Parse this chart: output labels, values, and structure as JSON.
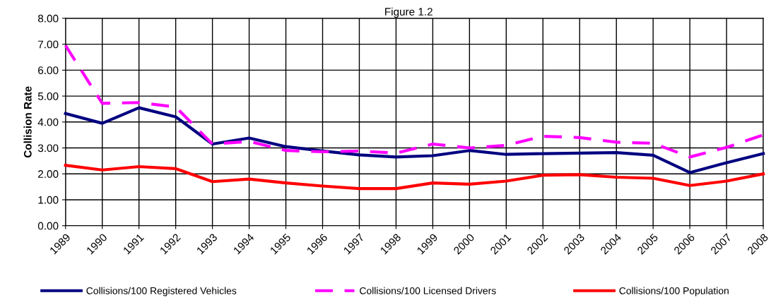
{
  "chart_data": {
    "type": "line",
    "title": "Figure 1.2",
    "ylabel": "Collision Rate",
    "categories": [
      "1989",
      "1990",
      "1991",
      "1992",
      "1993",
      "1994",
      "1995",
      "1996",
      "1997",
      "1998",
      "1999",
      "2000",
      "2001",
      "2002",
      "2003",
      "2004",
      "2005",
      "2006",
      "2007",
      "2008"
    ],
    "series": [
      {
        "name": "Collisions/100 Registered Vehicles",
        "color": "#000080",
        "line_style": "solid",
        "values": [
          4.33,
          3.95,
          4.55,
          4.2,
          3.15,
          3.38,
          3.05,
          2.88,
          2.73,
          2.65,
          2.7,
          2.9,
          2.75,
          2.78,
          2.8,
          2.82,
          2.72,
          2.05,
          2.43,
          2.78
        ]
      },
      {
        "name": "Collisions/100 Licensed Drivers",
        "color": "#ff00ff",
        "line_style": "dashed",
        "values": [
          6.95,
          4.72,
          4.75,
          4.58,
          3.15,
          3.25,
          2.9,
          2.85,
          2.88,
          2.8,
          3.15,
          3.0,
          3.1,
          3.45,
          3.4,
          3.22,
          3.18,
          2.65,
          3.02,
          3.5
        ]
      },
      {
        "name": "Collisions/100 Population",
        "color": "#ff0000",
        "line_style": "solid",
        "values": [
          2.33,
          2.15,
          2.28,
          2.2,
          1.7,
          1.8,
          1.65,
          1.53,
          1.43,
          1.43,
          1.65,
          1.6,
          1.72,
          1.95,
          1.97,
          1.87,
          1.83,
          1.55,
          1.72,
          2.0
        ]
      }
    ],
    "ylim": [
      0,
      8
    ],
    "yticks": [
      {
        "value": 0,
        "label": "0.00"
      },
      {
        "value": 1,
        "label": "1.00"
      },
      {
        "value": 2,
        "label": "2.00"
      },
      {
        "value": 3,
        "label": "3.00"
      },
      {
        "value": 4,
        "label": "4.00"
      },
      {
        "value": 5,
        "label": "5.00"
      },
      {
        "value": 6,
        "label": "6.00"
      },
      {
        "value": 7,
        "label": "7.00"
      },
      {
        "value": 8,
        "label": "8.00"
      }
    ],
    "grid": true,
    "legend": "bottom",
    "marker": "none"
  }
}
